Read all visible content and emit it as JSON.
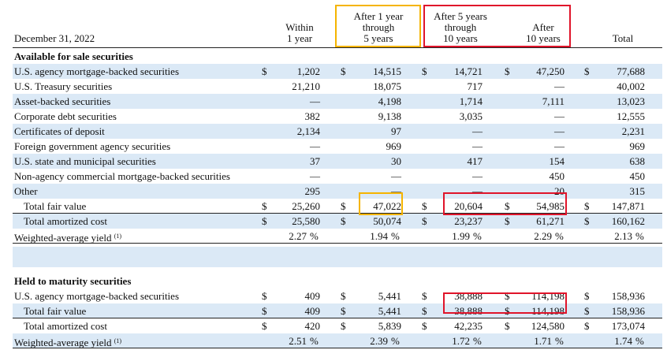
{
  "header": {
    "date_label": "December 31, 2022",
    "col1": [
      "Within",
      "1 year"
    ],
    "col2": [
      "After 1 year",
      "through",
      "5 years"
    ],
    "col3": [
      "After 5 years",
      "through",
      "10 years"
    ],
    "col4": [
      "After",
      "10 years"
    ],
    "col5": "Total"
  },
  "currency": "$",
  "sections": [
    {
      "title": "Available for sale securities",
      "rows": [
        {
          "label": "U.S. agency mortgage-backed securities",
          "dollar": true,
          "vals": [
            "1,202",
            "14,515",
            "14,721",
            "47,250",
            "77,688"
          ]
        },
        {
          "label": "U.S. Treasury securities",
          "dollar": false,
          "vals": [
            "21,210",
            "18,075",
            "717",
            "—",
            "40,002"
          ]
        },
        {
          "label": "Asset-backed securities",
          "dollar": false,
          "vals": [
            "—",
            "4,198",
            "1,714",
            "7,111",
            "13,023"
          ]
        },
        {
          "label": "Corporate debt securities",
          "dollar": false,
          "vals": [
            "382",
            "9,138",
            "3,035",
            "—",
            "12,555"
          ]
        },
        {
          "label": "Certificates of deposit",
          "dollar": false,
          "vals": [
            "2,134",
            "97",
            "—",
            "—",
            "2,231"
          ]
        },
        {
          "label": "Foreign government agency securities",
          "dollar": false,
          "vals": [
            "—",
            "969",
            "—",
            "—",
            "969"
          ]
        },
        {
          "label": "U.S. state and municipal securities",
          "dollar": false,
          "vals": [
            "37",
            "30",
            "417",
            "154",
            "638"
          ]
        },
        {
          "label": "Non-agency commercial mortgage-backed securities",
          "dollar": false,
          "vals": [
            "—",
            "—",
            "—",
            "450",
            "450"
          ]
        },
        {
          "label": "Other",
          "dollar": false,
          "vals": [
            "295",
            "—",
            "—",
            "20",
            "315"
          ]
        },
        {
          "label": "Total fair value",
          "dollar": true,
          "indent": true,
          "vals": [
            "25,260",
            "47,022",
            "20,604",
            "54,985",
            "147,871"
          ]
        },
        {
          "label": "Total amortized cost",
          "dollar": true,
          "indent": true,
          "vals": [
            "25,580",
            "50,074",
            "23,237",
            "61,271",
            "160,162"
          ]
        }
      ],
      "yield": {
        "label": "Weighted-average yield",
        "note": "(1)",
        "vals": [
          "2.27",
          "1.94",
          "1.99",
          "2.29",
          "2.13"
        ],
        "unit": "%"
      }
    },
    {
      "title": "Held to maturity securities",
      "rows": [
        {
          "label": "U.S. agency mortgage-backed securities",
          "dollar": true,
          "vals": [
            "409",
            "5,441",
            "38,888",
            "114,198",
            "158,936"
          ]
        },
        {
          "label": "Total fair value",
          "dollar": true,
          "indent": true,
          "vals": [
            "409",
            "5,441",
            "38,888",
            "114,198",
            "158,936"
          ]
        },
        {
          "label": "Total amortized cost",
          "dollar": true,
          "indent": true,
          "vals": [
            "420",
            "5,839",
            "42,235",
            "124,580",
            "173,074"
          ]
        }
      ],
      "yield": {
        "label": "Weighted-average yield",
        "note": "(1)",
        "vals": [
          "2.51",
          "2.39",
          "1.72",
          "1.71",
          "1.74"
        ],
        "unit": "%"
      }
    }
  ],
  "highlight_colors": {
    "orange": "#f5b400",
    "red": "#e0142a"
  },
  "row_shade": "#dbe9f6"
}
